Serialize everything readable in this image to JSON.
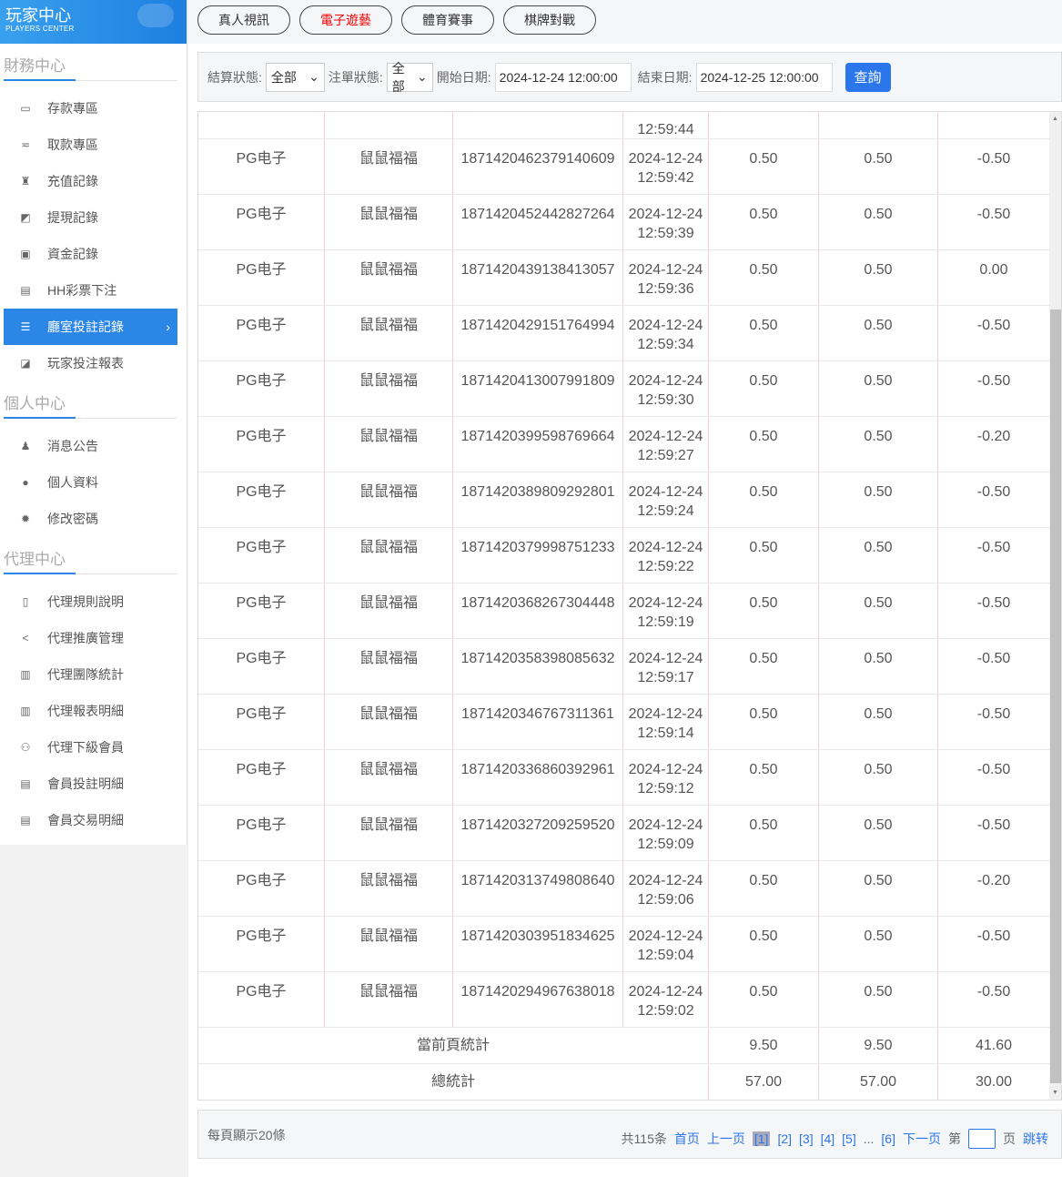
{
  "logo": {
    "title": "玩家中心",
    "subtitle": "PLAYERS CENTER"
  },
  "sidebar": {
    "sections": [
      {
        "title": "財務中心",
        "items": [
          {
            "label": "存款專區",
            "icon": "card-icon"
          },
          {
            "label": "取款專區",
            "icon": "hand-money-icon"
          },
          {
            "label": "充值記錄",
            "icon": "money-bag-icon"
          },
          {
            "label": "提現記錄",
            "icon": "wallet-icon"
          },
          {
            "label": "資金記錄",
            "icon": "safe-icon"
          },
          {
            "label": "HH彩票下注",
            "icon": "list-icon"
          },
          {
            "label": "廳室投註記錄",
            "icon": "list-bullets-icon",
            "active": true
          },
          {
            "label": "玩家投注報表",
            "icon": "chart-icon"
          }
        ]
      },
      {
        "title": "個人中心",
        "items": [
          {
            "label": "消息公告",
            "icon": "bell-icon"
          },
          {
            "label": "個人資料",
            "icon": "user-icon"
          },
          {
            "label": "修改密碼",
            "icon": "gear-icon"
          }
        ]
      },
      {
        "title": "代理中心",
        "items": [
          {
            "label": "代理規則說明",
            "icon": "file-icon"
          },
          {
            "label": "代理推廣管理",
            "icon": "share-icon"
          },
          {
            "label": "代理團隊統計",
            "icon": "doc-icon"
          },
          {
            "label": "代理報表明細",
            "icon": "doc-icon"
          },
          {
            "label": "代理下級會員",
            "icon": "users-icon"
          },
          {
            "label": "會員投註明細",
            "icon": "doc-list-icon"
          },
          {
            "label": "會員交易明細",
            "icon": "doc-list-icon"
          }
        ]
      }
    ]
  },
  "tabs": [
    {
      "label": "真人視訊"
    },
    {
      "label": "電子遊藝",
      "active": true
    },
    {
      "label": "體育賽事"
    },
    {
      "label": "棋牌對戰"
    }
  ],
  "filter": {
    "settle_label": "結算狀態:",
    "settle_value": "全部",
    "order_label": "注單狀態:",
    "order_value": "全部",
    "start_label": "開始日期:",
    "start_value": "2024-12-24 12:00:00",
    "end_label": "結束日期:",
    "end_value": "2024-12-25 12:00:00",
    "query": "查詢"
  },
  "table": {
    "partial_time": "12:59:44",
    "rows": [
      [
        "PG电子",
        "鼠鼠福福",
        "1871420462379140609",
        "2024-12-24",
        "12:59:42",
        "0.50",
        "0.50",
        "-0.50"
      ],
      [
        "PG电子",
        "鼠鼠福福",
        "1871420452442827264",
        "2024-12-24",
        "12:59:39",
        "0.50",
        "0.50",
        "-0.50"
      ],
      [
        "PG电子",
        "鼠鼠福福",
        "1871420439138413057",
        "2024-12-24",
        "12:59:36",
        "0.50",
        "0.50",
        "0.00"
      ],
      [
        "PG电子",
        "鼠鼠福福",
        "1871420429151764994",
        "2024-12-24",
        "12:59:34",
        "0.50",
        "0.50",
        "-0.50"
      ],
      [
        "PG电子",
        "鼠鼠福福",
        "1871420413007991809",
        "2024-12-24",
        "12:59:30",
        "0.50",
        "0.50",
        "-0.50"
      ],
      [
        "PG电子",
        "鼠鼠福福",
        "1871420399598769664",
        "2024-12-24",
        "12:59:27",
        "0.50",
        "0.50",
        "-0.20"
      ],
      [
        "PG电子",
        "鼠鼠福福",
        "1871420389809292801",
        "2024-12-24",
        "12:59:24",
        "0.50",
        "0.50",
        "-0.50"
      ],
      [
        "PG电子",
        "鼠鼠福福",
        "1871420379998751233",
        "2024-12-24",
        "12:59:22",
        "0.50",
        "0.50",
        "-0.50"
      ],
      [
        "PG电子",
        "鼠鼠福福",
        "1871420368267304448",
        "2024-12-24",
        "12:59:19",
        "0.50",
        "0.50",
        "-0.50"
      ],
      [
        "PG电子",
        "鼠鼠福福",
        "1871420358398085632",
        "2024-12-24",
        "12:59:17",
        "0.50",
        "0.50",
        "-0.50"
      ],
      [
        "PG电子",
        "鼠鼠福福",
        "1871420346767311361",
        "2024-12-24",
        "12:59:14",
        "0.50",
        "0.50",
        "-0.50"
      ],
      [
        "PG电子",
        "鼠鼠福福",
        "1871420336860392961",
        "2024-12-24",
        "12:59:12",
        "0.50",
        "0.50",
        "-0.50"
      ],
      [
        "PG电子",
        "鼠鼠福福",
        "1871420327209259520",
        "2024-12-24",
        "12:59:09",
        "0.50",
        "0.50",
        "-0.50"
      ],
      [
        "PG电子",
        "鼠鼠福福",
        "1871420313749808640",
        "2024-12-24",
        "12:59:06",
        "0.50",
        "0.50",
        "-0.20"
      ],
      [
        "PG电子",
        "鼠鼠福福",
        "1871420303951834625",
        "2024-12-24",
        "12:59:04",
        "0.50",
        "0.50",
        "-0.50"
      ],
      [
        "PG电子",
        "鼠鼠福福",
        "1871420294967638018",
        "2024-12-24",
        "12:59:02",
        "0.50",
        "0.50",
        "-0.50"
      ]
    ],
    "page_total": {
      "label": "當前頁統計",
      "bet": "9.50",
      "valid": "9.50",
      "win": "41.60"
    },
    "grand_total": {
      "label": "總統計",
      "bet": "57.00",
      "valid": "57.00",
      "win": "30.00"
    }
  },
  "pager": {
    "per_page": "每頁顯示20條",
    "total": "共115条",
    "first": "首页",
    "prev": "上一页",
    "pages": [
      "[1]",
      "[2]",
      "[3]",
      "[4]",
      "[5]"
    ],
    "ellipsis": "...",
    "last_page": "[6]",
    "next": "下一页",
    "goto_prefix": "第",
    "goto_suffix": "页",
    "jump": "跳转",
    "current_page": 1
  }
}
